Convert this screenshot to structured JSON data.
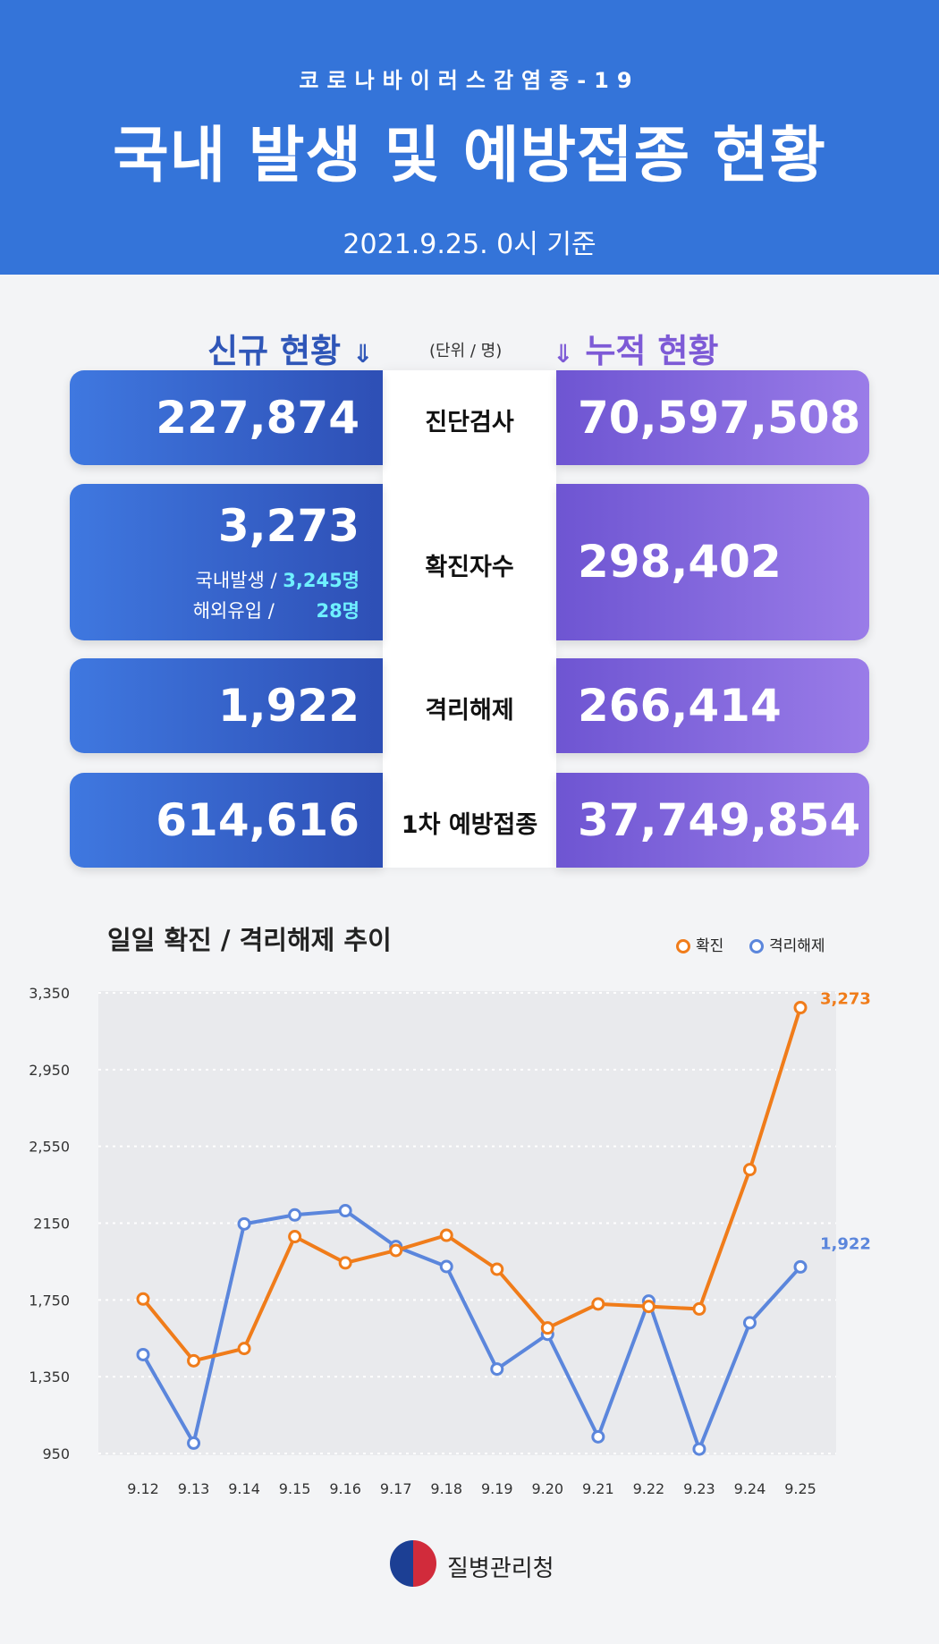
{
  "header": {
    "subtitle": "코로나바이러스감염증-19",
    "title": "국내 발생 및 예방접종 현황",
    "date": "2021.9.25. 0시 기준",
    "bg_color": "#3474d9"
  },
  "sections": {
    "new_label": "신규 현황",
    "cumulative_label": "누적 현황",
    "unit": "(단위 / 명)",
    "chevron_icon": "chevron-double-down-icon"
  },
  "rows": [
    {
      "label": "진단검사",
      "new": "227,874",
      "cumulative": "70,597,508"
    },
    {
      "label": "확진자수",
      "new": "3,273",
      "cumulative": "298,402",
      "domestic_label": "국내발생 /",
      "domestic_value": "3,245명",
      "overseas_label": "해외유입 /",
      "overseas_value": "28명"
    },
    {
      "label": "격리해제",
      "new": "1,922",
      "cumulative": "266,414"
    },
    {
      "label": "1차 예방접종",
      "new": "614,616",
      "cumulative": "37,749,854"
    }
  ],
  "colors": {
    "new": "#3565d6",
    "cumulative": "#7d5ad6",
    "confirmed": "#f07c1a",
    "released": "#5b86dc"
  },
  "chart_data": {
    "type": "line",
    "title": "일일 확진 / 격리해제 추이",
    "categories": [
      "9.12",
      "9.13",
      "9.14",
      "9.15",
      "9.16",
      "9.17",
      "9.18",
      "9.19",
      "9.20",
      "9.21",
      "9.22",
      "9.23",
      "9.24",
      "9.25"
    ],
    "series": [
      {
        "name": "확진",
        "color": "#f07c1a",
        "values": [
          1755,
          1433,
          1497,
          2080,
          1943,
          2008,
          2087,
          1910,
          1604,
          1729,
          1716,
          1703,
          2429,
          3273
        ]
      },
      {
        "name": "격리해제",
        "color": "#5b86dc",
        "values": [
          1465,
          1004,
          2146,
          2193,
          2215,
          2028,
          1924,
          1390,
          1571,
          1037,
          1744,
          973,
          1631,
          1922
        ]
      }
    ],
    "end_labels": [
      "3,273",
      "1,922"
    ],
    "yticks": [
      "3,350",
      "2,950",
      "2,550",
      "2150",
      "1,750",
      "1,350",
      "950"
    ],
    "ytick_values": [
      3350,
      2950,
      2550,
      2150,
      1750,
      1350,
      950
    ],
    "ylim": [
      950,
      3350
    ],
    "grid": true,
    "legend": "top-right"
  },
  "footer": {
    "org": "질병관리청",
    "logo_icon": "taegeuk-logo-icon"
  }
}
